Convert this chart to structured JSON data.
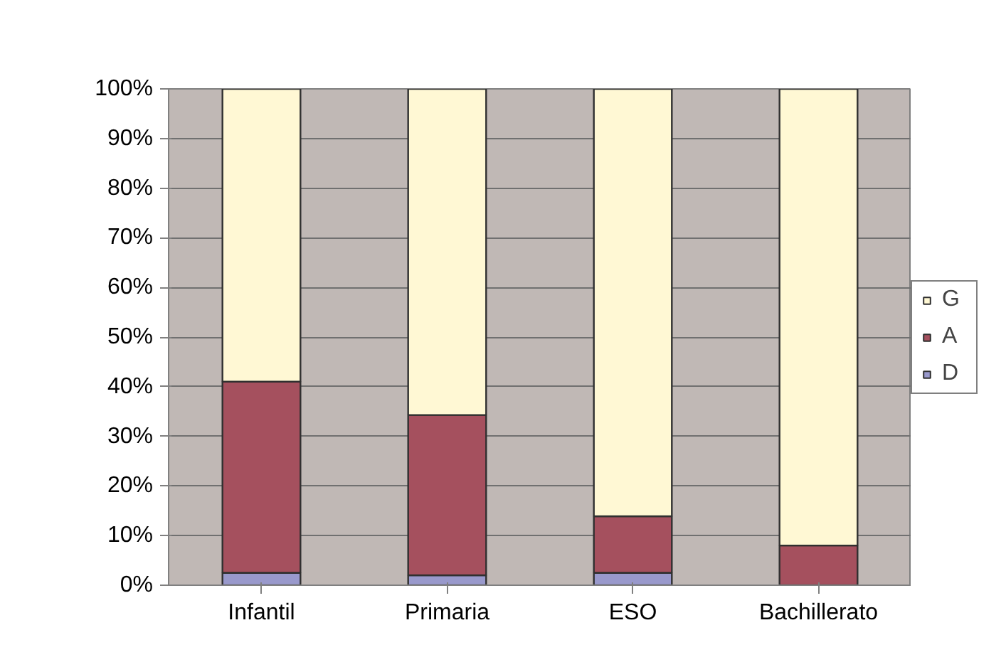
{
  "chart_data": {
    "type": "bar",
    "stacked": true,
    "categories": [
      "Infantil",
      "Primaria",
      "ESO",
      "Bachillerato"
    ],
    "series": [
      {
        "name": "D",
        "color": "#9999cc",
        "values": [
          2.5,
          2,
          2.5,
          0
        ]
      },
      {
        "name": "A",
        "color": "#a5505e",
        "values": [
          38.5,
          32.3,
          11.4,
          8
        ]
      },
      {
        "name": "G",
        "color": "#fff8d4",
        "values": [
          59,
          65.7,
          86.1,
          92
        ]
      }
    ],
    "ylim": [
      0,
      100
    ],
    "yticks": [
      {
        "value": 0,
        "label": "0%"
      },
      {
        "value": 10,
        "label": "10%"
      },
      {
        "value": 20,
        "label": "20%"
      },
      {
        "value": 30,
        "label": "30%"
      },
      {
        "value": 40,
        "label": "40%"
      },
      {
        "value": 50,
        "label": "50%"
      },
      {
        "value": 60,
        "label": "60%"
      },
      {
        "value": 70,
        "label": "70%"
      },
      {
        "value": 80,
        "label": "80%"
      },
      {
        "value": 90,
        "label": "90%"
      },
      {
        "value": 100,
        "label": "100%"
      }
    ],
    "grid": "y",
    "legend": "right"
  }
}
